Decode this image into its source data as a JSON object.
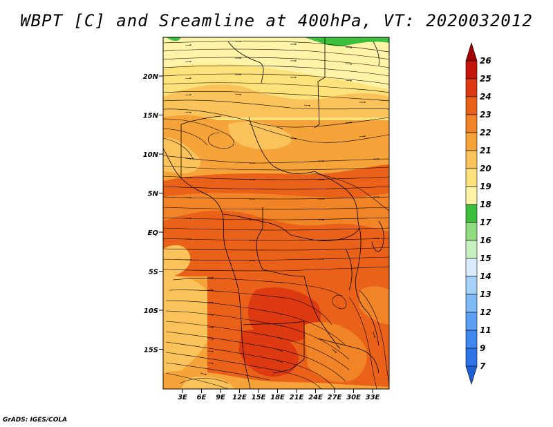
{
  "title": "WBPT [C] and Sreamline at 400hPa, VT: 2020032012",
  "credit": "GrADS: IGES/COLA",
  "lat_labels": [
    "20N",
    "15N",
    "10N",
    "5N",
    "EQ",
    "5S",
    "10S",
    "15S"
  ],
  "lon_labels": [
    "3E",
    "6E",
    "9E",
    "12E",
    "15E",
    "18E",
    "21E",
    "24E",
    "27E",
    "30E",
    "33E"
  ],
  "colorbar": {
    "labels": [
      "7",
      "9",
      "11",
      "12",
      "13",
      "14",
      "15",
      "16",
      "17",
      "18",
      "19",
      "20",
      "21",
      "22",
      "23",
      "24",
      "25",
      "26"
    ],
    "colors": [
      "#1f5fd6",
      "#2e73e6",
      "#3d87ee",
      "#5ba0f2",
      "#7fb9f6",
      "#a6d1fa",
      "#d8ecfd",
      "#c7efc0",
      "#8fdc80",
      "#3cbf3c",
      "#fff3a8",
      "#fde27c",
      "#f9c25a",
      "#f6a43a",
      "#f08426",
      "#ea621a",
      "#dd3a12",
      "#c4150c",
      "#a00000"
    ]
  }
}
